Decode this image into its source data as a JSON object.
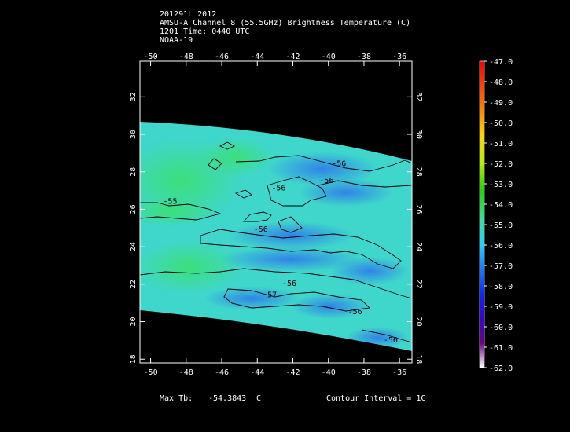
{
  "header": {
    "line1": "201291L 2012",
    "line2": "AMSU-A Channel 8 (55.5GHz) Brightness Temperature (C)",
    "line3": "1201 Time: 0440 UTC",
    "line4": "NOAA-19"
  },
  "footer": {
    "max_label": "Max Tb:",
    "max_value": "-54.3843",
    "max_unit": "C",
    "contour_interval": "Contour Interval = 1C"
  },
  "chart_data": {
    "type": "heatmap",
    "x_ticks": [
      -50,
      -48,
      -46,
      -44,
      -42,
      -40,
      -38,
      -36
    ],
    "y_ticks": [
      18,
      20,
      22,
      24,
      26,
      28,
      30,
      32
    ],
    "xlim": [
      -50.6,
      -35.3
    ],
    "ylim": [
      17.8,
      33.9
    ],
    "colorbar": {
      "ticks": [
        "-47.0",
        "-48.0",
        "-49.0",
        "-50.0",
        "-51.0",
        "-52.0",
        "-53.0",
        "-54.0",
        "-55.0",
        "-56.0",
        "-57.0",
        "-58.0",
        "-59.0",
        "-60.0",
        "-61.0",
        "-62.0"
      ],
      "range": [
        -62.0,
        -47.0
      ]
    },
    "contour_labels": [
      {
        "text": "-56",
        "x": -39.4,
        "y": 28.3
      },
      {
        "text": "-56",
        "x": -40.1,
        "y": 27.4
      },
      {
        "text": "-56",
        "x": -42.8,
        "y": 27.0
      },
      {
        "text": "-55",
        "x": -48.9,
        "y": 26.3
      },
      {
        "text": "-56",
        "x": -43.8,
        "y": 24.8
      },
      {
        "text": "-56",
        "x": -42.2,
        "y": 21.9
      },
      {
        "text": "-57",
        "x": -43.3,
        "y": 21.3
      },
      {
        "text": "-56",
        "x": -38.5,
        "y": 20.4
      },
      {
        "text": "-56",
        "x": -36.5,
        "y": 18.9
      }
    ],
    "grid": false
  },
  "colors": {
    "background": "#000000",
    "frame": "#ffffff",
    "contour": "#000000",
    "field_main": "#3fd6d0",
    "field_warm": "#39e08a",
    "field_cold": "#2f8fe8"
  }
}
